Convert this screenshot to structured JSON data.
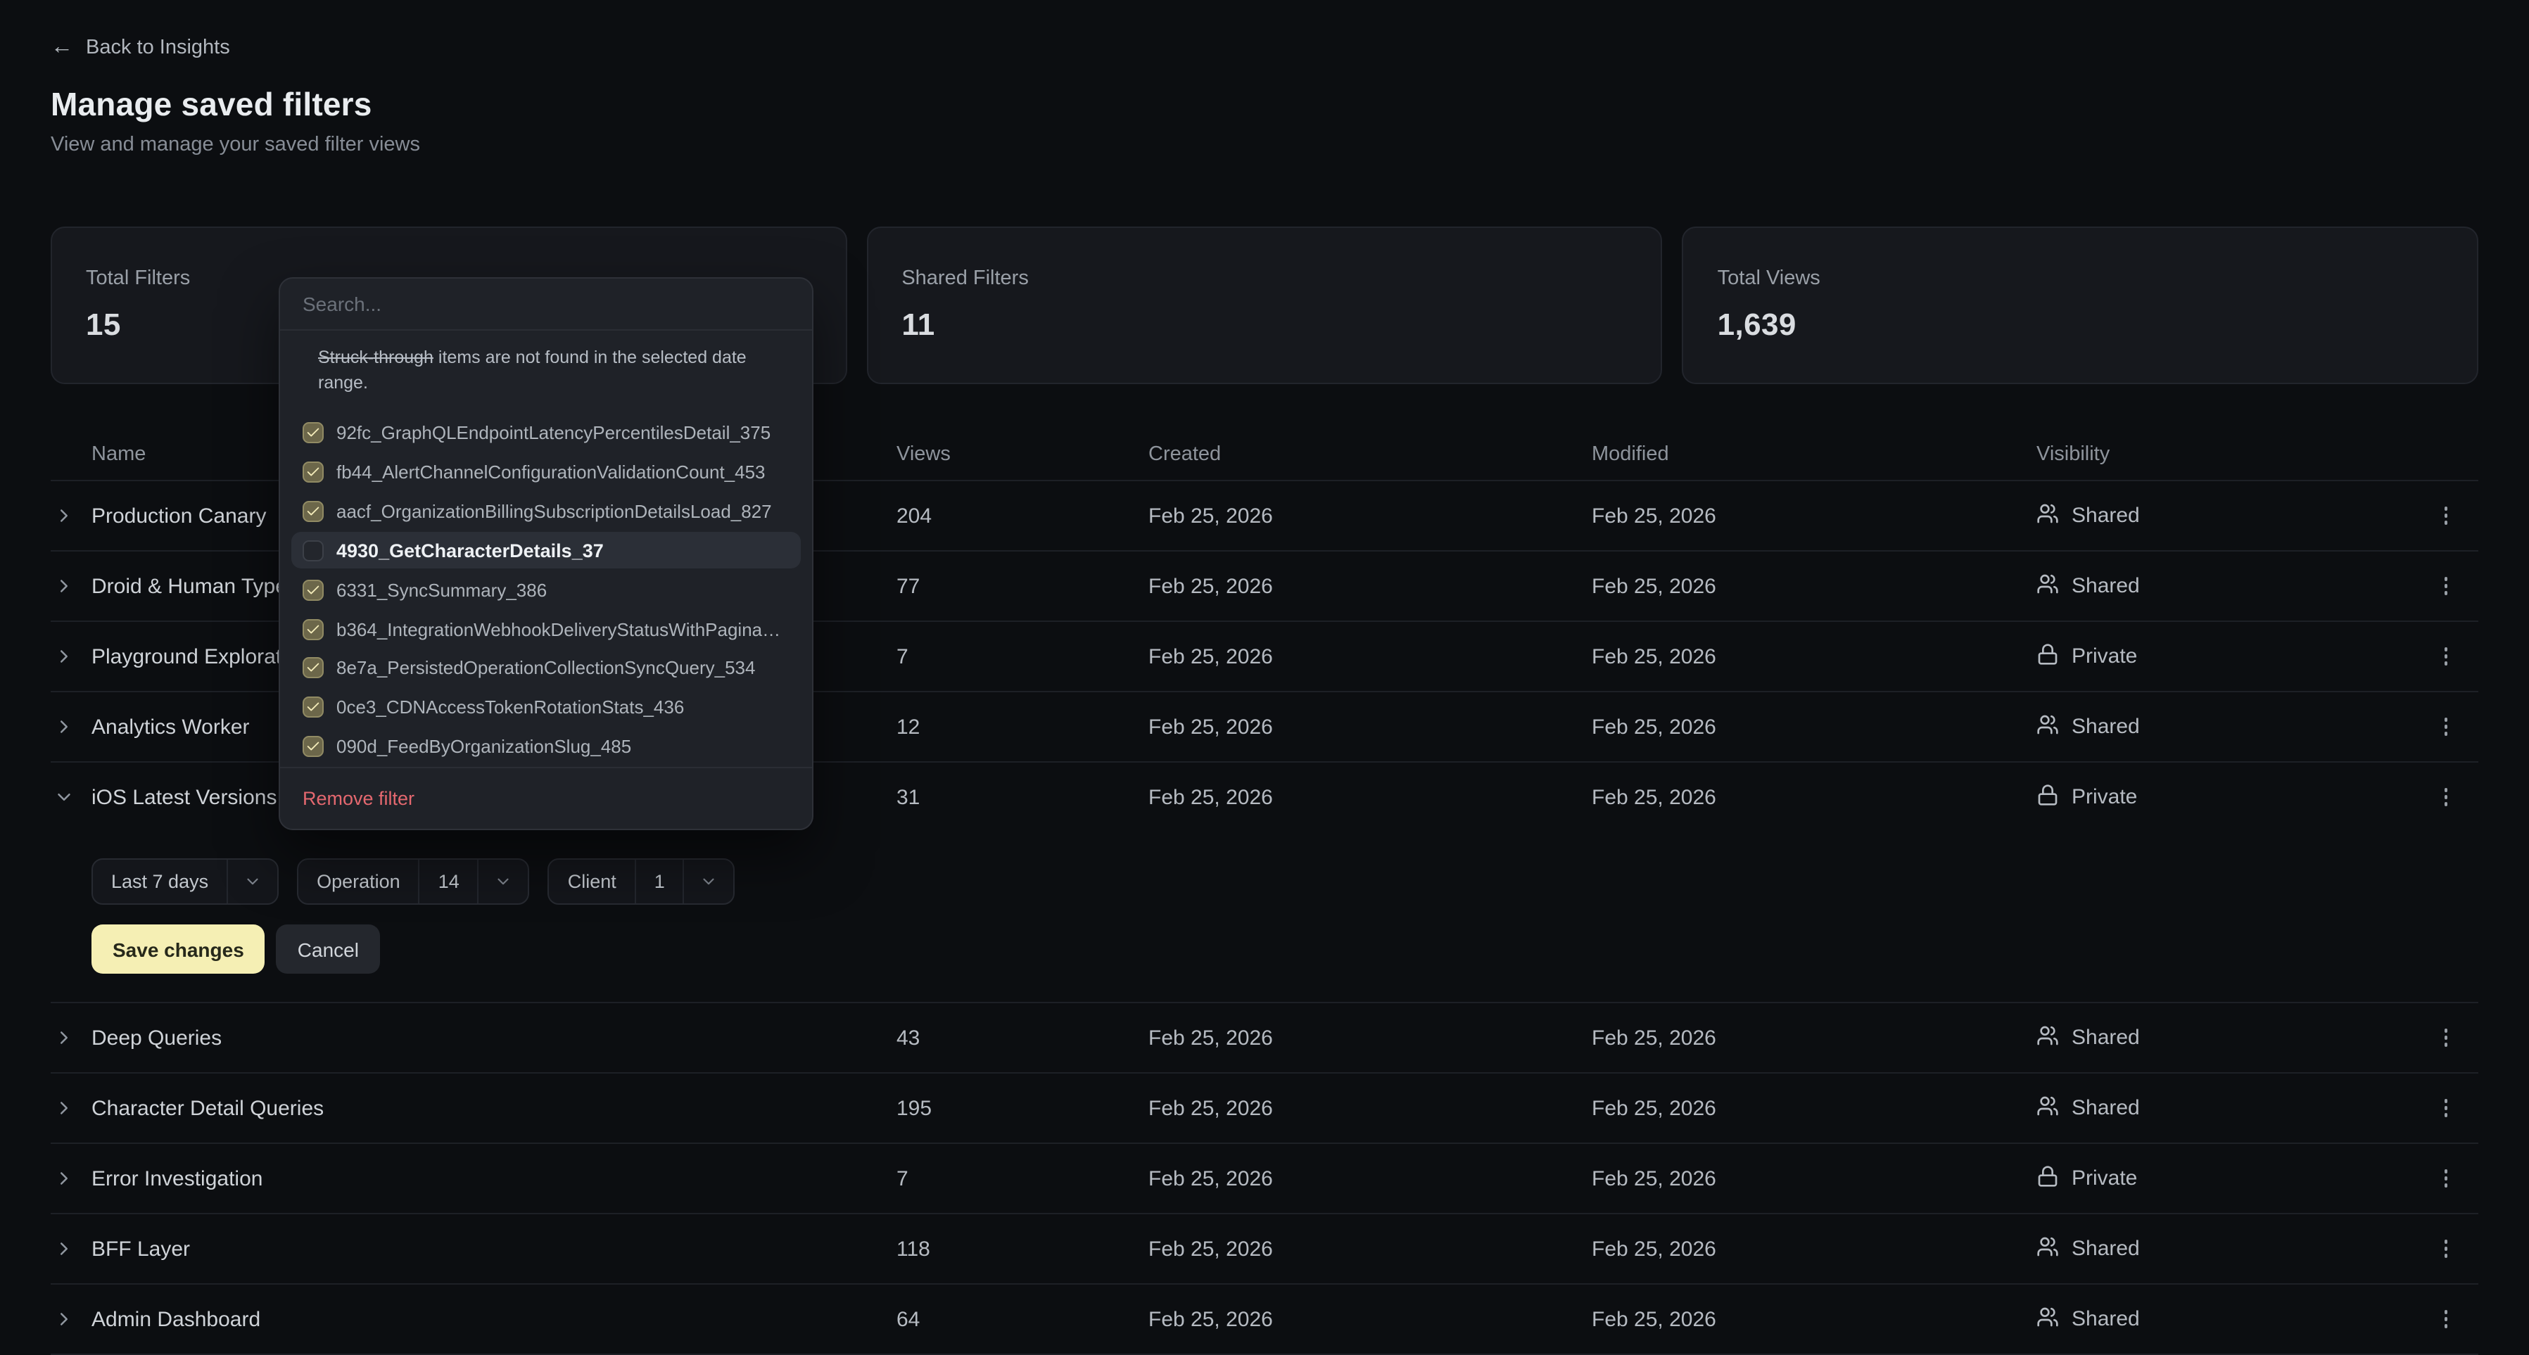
{
  "page": {
    "back_label": "Back to Insights",
    "title": "Manage saved filters",
    "subtitle": "View and manage your saved filter views"
  },
  "colors": {
    "accent_button": "#f5efb4",
    "danger_link": "#e4686f",
    "checkbox_checked": "#6c674a"
  },
  "stats": [
    {
      "label": "Total Filters",
      "value": "15"
    },
    {
      "label": "Shared Filters",
      "value": "11"
    },
    {
      "label": "Total Views",
      "value": "1,639"
    }
  ],
  "table": {
    "columns": [
      "Name",
      "Views",
      "Created",
      "Modified",
      "Visibility"
    ],
    "rows": [
      {
        "name": "Production Canary",
        "views": "204",
        "created": "Feb 25, 2026",
        "modified": "Feb 25, 2026",
        "visibility": "Shared",
        "icon": "users-icon",
        "expanded": false
      },
      {
        "name": "Droid & Human Types",
        "views": "77",
        "created": "Feb 25, 2026",
        "modified": "Feb 25, 2026",
        "visibility": "Shared",
        "icon": "users-icon",
        "expanded": false
      },
      {
        "name": "Playground Exploration",
        "views": "7",
        "created": "Feb 25, 2026",
        "modified": "Feb 25, 2026",
        "visibility": "Private",
        "icon": "lock-icon",
        "expanded": false
      },
      {
        "name": "Analytics Worker",
        "views": "12",
        "created": "Feb 25, 2026",
        "modified": "Feb 25, 2026",
        "visibility": "Shared",
        "icon": "users-icon",
        "expanded": false
      },
      {
        "name": "iOS Latest Versions",
        "views": "31",
        "created": "Feb 25, 2026",
        "modified": "Feb 25, 2026",
        "visibility": "Private",
        "icon": "lock-icon",
        "expanded": true
      },
      {
        "name": "Deep Queries",
        "views": "43",
        "created": "Feb 25, 2026",
        "modified": "Feb 25, 2026",
        "visibility": "Shared",
        "icon": "users-icon",
        "expanded": false
      },
      {
        "name": "Character Detail Queries",
        "views": "195",
        "created": "Feb 25, 2026",
        "modified": "Feb 25, 2026",
        "visibility": "Shared",
        "icon": "users-icon",
        "expanded": false
      },
      {
        "name": "Error Investigation",
        "views": "7",
        "created": "Feb 25, 2026",
        "modified": "Feb 25, 2026",
        "visibility": "Private",
        "icon": "lock-icon",
        "expanded": false
      },
      {
        "name": "BFF Layer",
        "views": "118",
        "created": "Feb 25, 2026",
        "modified": "Feb 25, 2026",
        "visibility": "Shared",
        "icon": "users-icon",
        "expanded": false
      },
      {
        "name": "Admin Dashboard",
        "views": "64",
        "created": "Feb 25, 2026",
        "modified": "Feb 25, 2026",
        "visibility": "Shared",
        "icon": "users-icon",
        "expanded": false
      }
    ]
  },
  "expanded_editor": {
    "chips": [
      {
        "label": "Last 7 days",
        "value": null
      },
      {
        "label": "Operation",
        "value": "14"
      },
      {
        "label": "Client",
        "value": "1"
      }
    ],
    "save_label": "Save changes",
    "cancel_label": "Cancel"
  },
  "dropdown": {
    "search_placeholder": "Search...",
    "note_strike": "Struck-through",
    "note_rest": " items are not found in the selected date range.",
    "items": [
      {
        "label": "92fc_GraphQLEndpointLatencyPercentilesDetail_375",
        "checked": true,
        "highlighted": false
      },
      {
        "label": "fb44_AlertChannelConfigurationValidationCount_453",
        "checked": true,
        "highlighted": false
      },
      {
        "label": "aacf_OrganizationBillingSubscriptionDetailsLoad_827",
        "checked": true,
        "highlighted": false
      },
      {
        "label": "4930_GetCharacterDetails_37",
        "checked": false,
        "highlighted": true
      },
      {
        "label": "6331_SyncSummary_386",
        "checked": true,
        "highlighted": false
      },
      {
        "label": "b364_IntegrationWebhookDeliveryStatusWithPagina…",
        "checked": true,
        "highlighted": false
      },
      {
        "label": "8e7a_PersistedOperationCollectionSyncQuery_534",
        "checked": true,
        "highlighted": false
      },
      {
        "label": "0ce3_CDNAccessTokenRotationStats_436",
        "checked": true,
        "highlighted": false
      },
      {
        "label": "090d_FeedByOrganizationSlug_485",
        "checked": true,
        "highlighted": false
      }
    ],
    "remove_label": "Remove filter"
  }
}
